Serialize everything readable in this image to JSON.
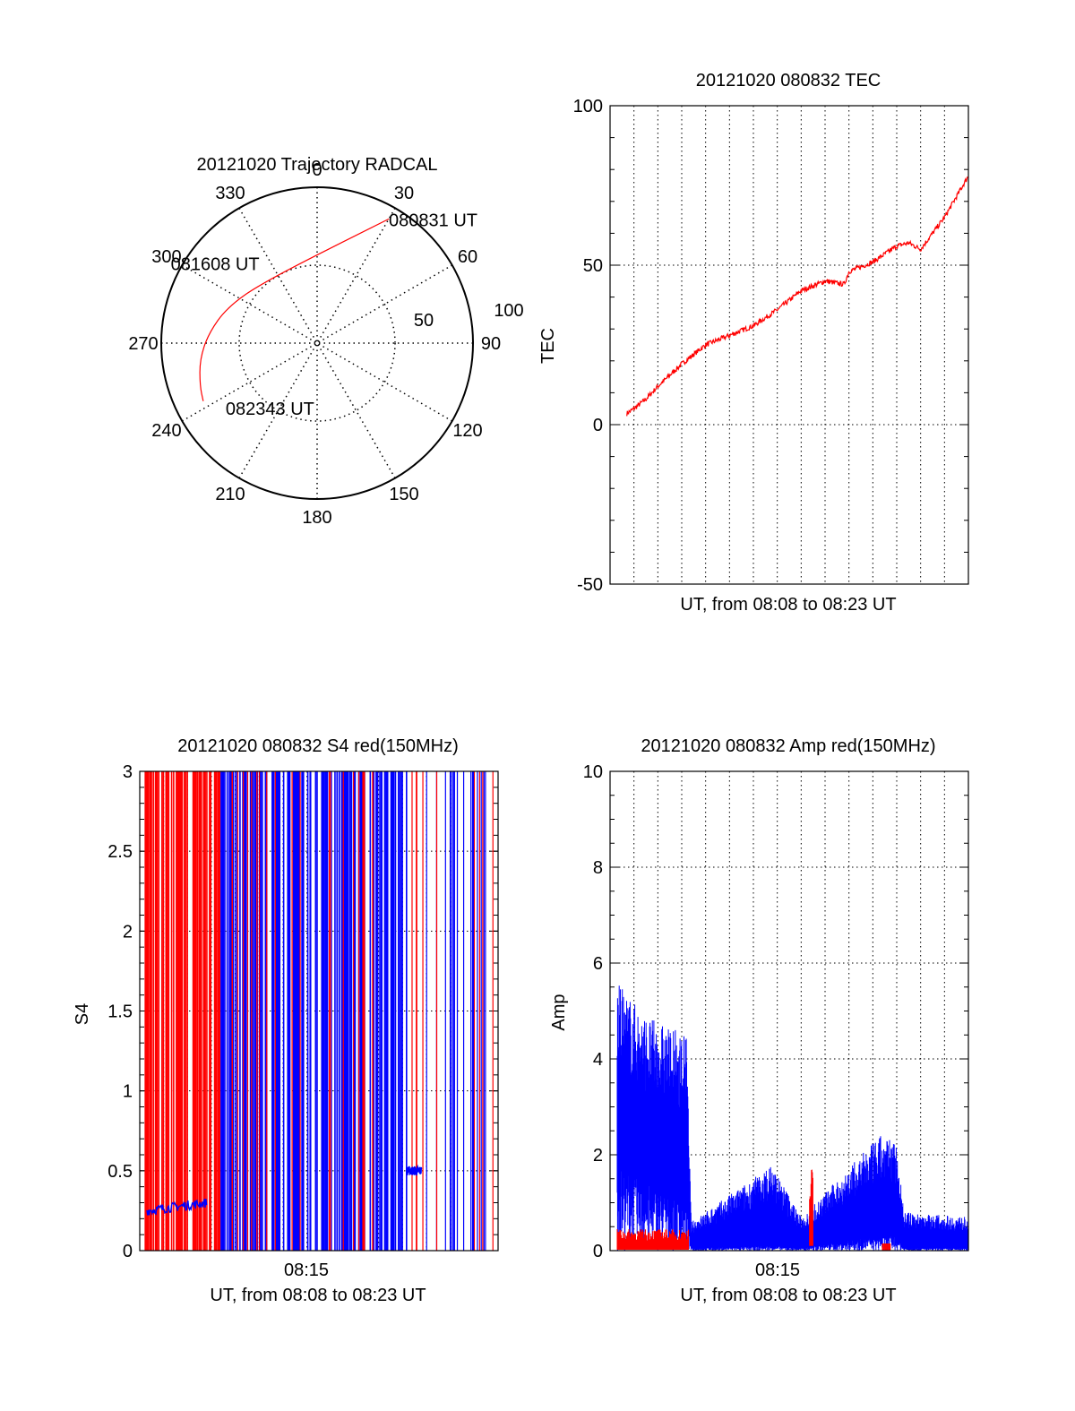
{
  "chart_data": [
    {
      "type": "polar",
      "title": "20121020 Trajectory RADCAL",
      "angle_ticks": [
        "0",
        "30",
        "60",
        "90",
        "120",
        "150",
        "180",
        "210",
        "240",
        "270",
        "300",
        "330"
      ],
      "radial_ticks": [
        "50",
        "100"
      ],
      "rlim": [
        0,
        100
      ],
      "grid": true,
      "trajectory_color": "#ff0000",
      "trajectory": [
        {
          "az": 30,
          "zen": 92
        },
        {
          "az": 320,
          "zen": 52
        },
        {
          "az": 292,
          "zen": 62
        },
        {
          "az": 275,
          "zen": 70
        },
        {
          "az": 262,
          "zen": 76
        },
        {
          "az": 250,
          "zen": 80
        },
        {
          "az": 243,
          "zen": 82
        }
      ],
      "annotations": [
        {
          "text": "080831 UT",
          "az": 30,
          "zen": 92
        },
        {
          "text": "081608 UT",
          "az": 300,
          "zen": 50
        },
        {
          "text": "082343 UT",
          "az": 236,
          "zen": 68
        }
      ]
    },
    {
      "type": "line",
      "title": "20121020 080832 TEC",
      "xlabel": "UT, from 08:08 to 08:23 UT",
      "ylabel": "TEC",
      "ylim": [
        -50,
        100
      ],
      "yticks": [
        "-50",
        "0",
        "50",
        "100"
      ],
      "grid": true,
      "color": "#ff0000",
      "x": [
        0,
        1,
        1.5,
        2,
        3,
        4,
        5,
        6,
        7,
        8,
        9,
        9.8,
        10,
        11,
        12,
        12.5,
        13,
        14,
        15
      ],
      "y": [
        0,
        5,
        8,
        12,
        19,
        25,
        28,
        31,
        36,
        42,
        45,
        44,
        48,
        51,
        56,
        57,
        55,
        65,
        78
      ]
    },
    {
      "type": "line",
      "title": "20121020 080832 S4 red(150MHz)",
      "xlabel": "UT, from 08:08 to 08:23 UT",
      "ylabel": "S4",
      "ylim": [
        0,
        3
      ],
      "yticks": [
        "0",
        "0.5",
        "1",
        "1.5",
        "2",
        "2.5",
        "3"
      ],
      "xticks": [
        "08:15"
      ],
      "grid": true,
      "series_colors": [
        "#ff0000",
        "#0000ff"
      ],
      "blue_segments": [
        {
          "x": [
            0.3,
            1.5,
            2.8
          ],
          "y": [
            0.25,
            0.26,
            0.3
          ]
        },
        {
          "x": [
            11.2,
            11.5,
            11.8
          ],
          "y": [
            0.5,
            0.55,
            0.5
          ]
        }
      ]
    },
    {
      "type": "line",
      "title": "20121020 080832 Amp red(150MHz)",
      "xlabel": "UT, from 08:08 to 08:23 UT",
      "ylabel": "Amp",
      "ylim": [
        0,
        10
      ],
      "yticks": [
        "0",
        "2",
        "4",
        "6",
        "8",
        "10"
      ],
      "xticks": [
        "08:15"
      ],
      "grid": true,
      "series_colors": [
        "#ff0000",
        "#0000ff"
      ],
      "blue_envelope": [
        {
          "x": 0.3,
          "hi": 5.6,
          "lo": 1.8
        },
        {
          "x": 1.5,
          "hi": 4.9,
          "lo": 1.4
        },
        {
          "x": 3.2,
          "hi": 4.5,
          "lo": 1.0
        },
        {
          "x": 3.4,
          "hi": 0.6,
          "lo": 0.05
        },
        {
          "x": 6.8,
          "hi": 1.8,
          "lo": 0.1
        },
        {
          "x": 8.0,
          "hi": 0.7,
          "lo": 0.05
        },
        {
          "x": 11.3,
          "hi": 2.4,
          "lo": 0.3
        },
        {
          "x": 12.0,
          "hi": 2.3,
          "lo": 0.3
        },
        {
          "x": 12.3,
          "hi": 0.8,
          "lo": 0.05
        },
        {
          "x": 15,
          "hi": 0.7,
          "lo": 0.05
        }
      ],
      "red_envelope": [
        {
          "x": 0.3,
          "hi": 0.45,
          "lo": 0.05
        },
        {
          "x": 3.3,
          "hi": 0.4,
          "lo": 0.05
        },
        {
          "x": 8.4,
          "hi": 1.8,
          "lo": 0.1
        },
        {
          "x": 11.6,
          "hi": 0.15,
          "lo": 0.0
        }
      ]
    }
  ]
}
